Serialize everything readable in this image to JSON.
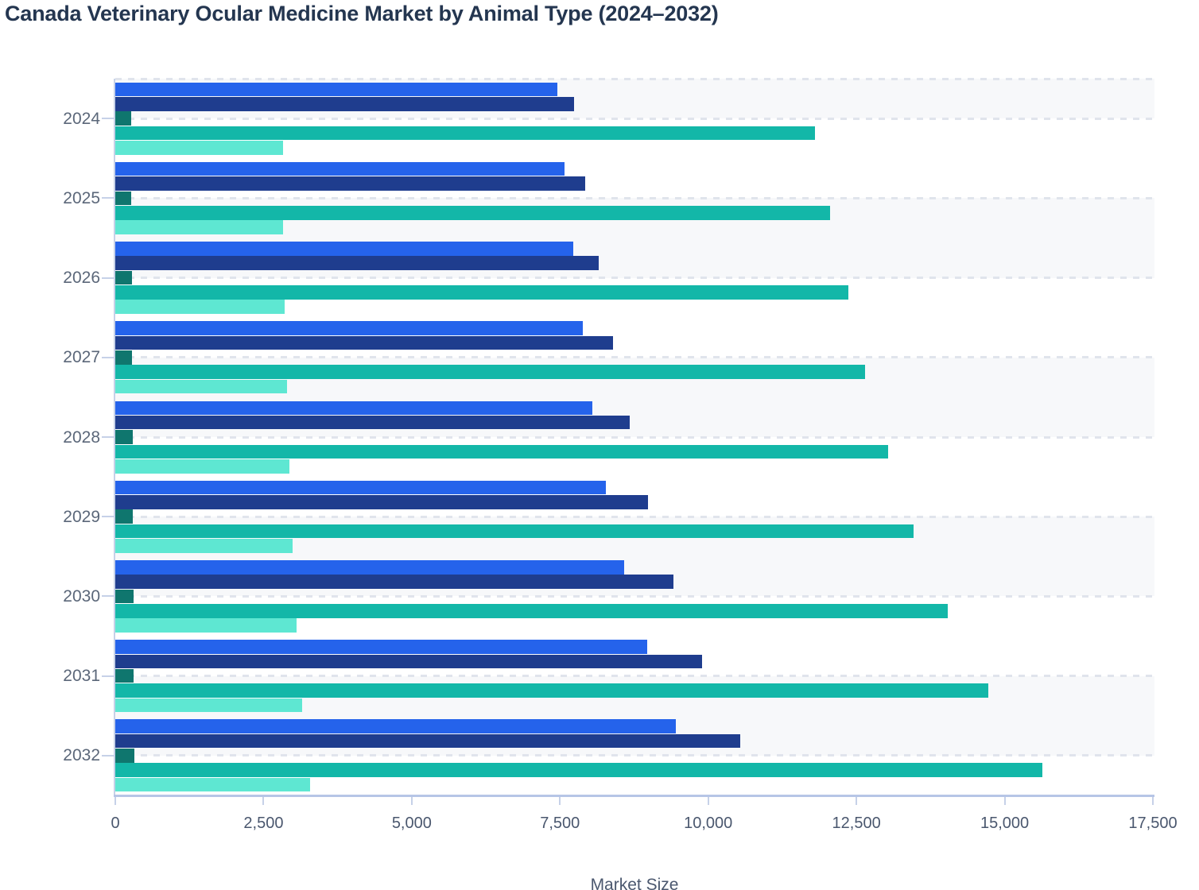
{
  "title": "Canada Veterinary Ocular Medicine Market by Animal Type (2024–2032)",
  "chart_data": {
    "type": "bar",
    "orientation": "horizontal",
    "title": "Canada Veterinary Ocular Medicine Market by Animal Type (2024–2032)",
    "xlabel": "Market Size",
    "ylabel": "",
    "categories": [
      "2024",
      "2025",
      "2026",
      "2027",
      "2028",
      "2029",
      "2030",
      "2031",
      "2032"
    ],
    "xlim": [
      0,
      17500
    ],
    "xticks": [
      {
        "value": 0,
        "label": "0"
      },
      {
        "value": 2500,
        "label": "2,500"
      },
      {
        "value": 5000,
        "label": "5,000"
      },
      {
        "value": 7500,
        "label": "7,500"
      },
      {
        "value": 10000,
        "label": "10,000"
      },
      {
        "value": 12500,
        "label": "12,500"
      },
      {
        "value": 15000,
        "label": "15,000"
      },
      {
        "value": 17500,
        "label": "17,500"
      }
    ],
    "grid": "dashed horizontal gridlines at category centers, alternating light split bands",
    "legend": "none",
    "series": [
      {
        "name": "series-1-blue",
        "color": "#2563eb",
        "values": [
          7460,
          7580,
          7720,
          7890,
          8050,
          8280,
          8580,
          8970,
          9460
        ]
      },
      {
        "name": "series-2-dark-blue",
        "color": "#1f3d8e",
        "values": [
          7740,
          7930,
          8150,
          8400,
          8670,
          8990,
          9420,
          9900,
          10540
        ]
      },
      {
        "name": "series-3-dark-teal",
        "color": "#0f766e",
        "values": [
          265,
          270,
          275,
          280,
          290,
          300,
          310,
          315,
          325
        ]
      },
      {
        "name": "series-4-teal",
        "color": "#13b7a8",
        "values": [
          11800,
          12060,
          12360,
          12640,
          13040,
          13470,
          14040,
          14730,
          15630
        ]
      },
      {
        "name": "series-5-mint",
        "color": "#5ee7d2",
        "values": [
          2830,
          2830,
          2860,
          2900,
          2940,
          2990,
          3060,
          3150,
          3290
        ]
      }
    ]
  },
  "colors": {
    "title": "#243650",
    "band": "#f7f8fa",
    "gridline": "#e0e4ec",
    "axis_line": "#b6c5e6",
    "tick": "#c6d1e8",
    "year_label": "#5b6779",
    "x_tick_label": "#4a576e"
  }
}
